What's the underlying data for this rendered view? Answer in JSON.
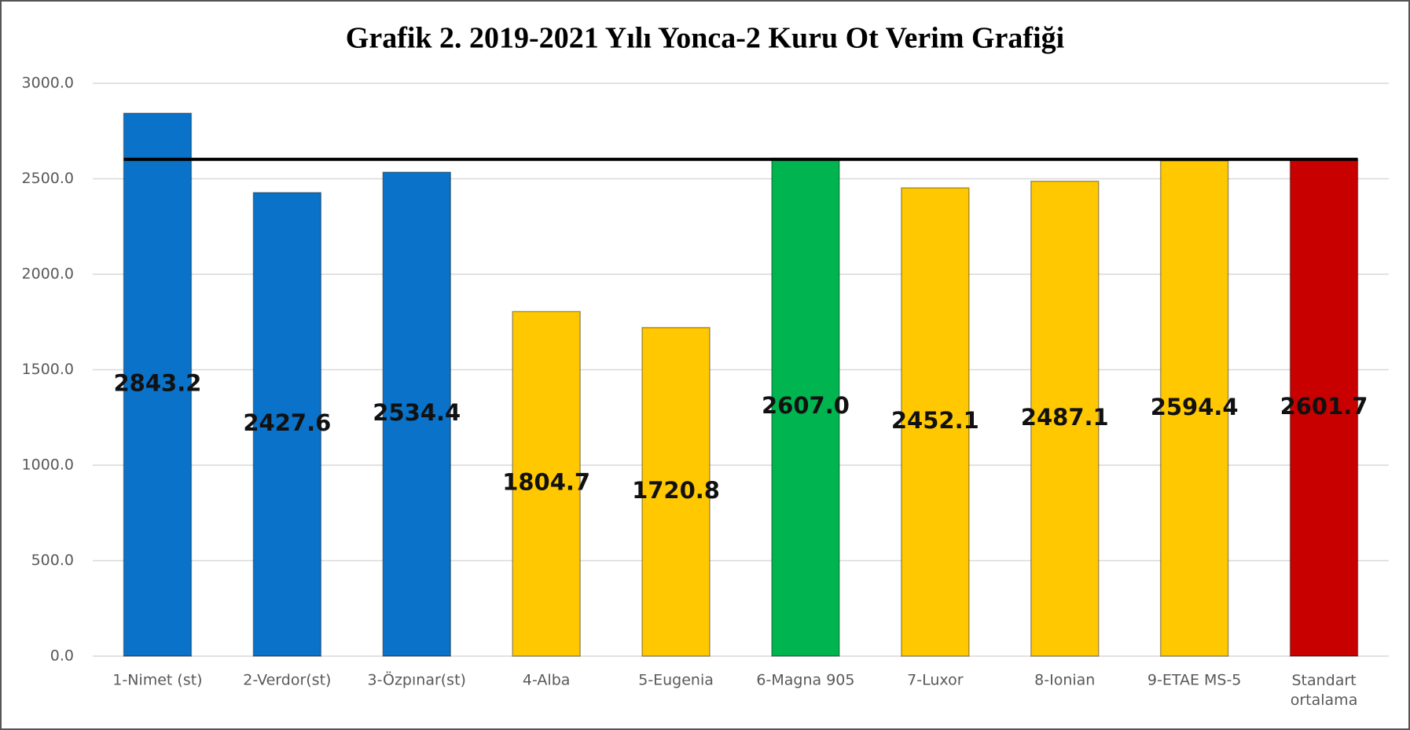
{
  "chart_data": {
    "type": "bar",
    "title": "Grafik 2. 2019-2021 Yılı Yonca-2 Kuru Ot Verim Grafiği",
    "categories": [
      "1-Nimet (st)",
      "2-Verdor(st)",
      "3-Özpınar(st)",
      "4-Alba",
      "5-Eugenia",
      "6-Magna 905",
      "7-Luxor",
      "8-Ionian",
      "9-ETAE MS-5",
      "Standart ortalama"
    ],
    "values": [
      2843.2,
      2427.6,
      2534.4,
      1804.7,
      1720.8,
      2607.0,
      2452.1,
      2487.1,
      2594.4,
      2601.7
    ],
    "value_labels": [
      "2843.2",
      "2427.6",
      "2534.4",
      "1804.7",
      "1720.8",
      "2607.0",
      "2452.1",
      "2487.1",
      "2594.4",
      "2601.7"
    ],
    "colors": [
      "#0a72c8",
      "#0a72c8",
      "#0a72c8",
      "#ffc800",
      "#ffc800",
      "#00b450",
      "#ffc800",
      "#ffc800",
      "#ffc800",
      "#c80000"
    ],
    "ylim": [
      0,
      3000
    ],
    "yticks": [
      {
        "value": 0,
        "label": "0.0"
      },
      {
        "value": 500,
        "label": "500.0"
      },
      {
        "value": 1000,
        "label": "1000.0"
      },
      {
        "value": 1500,
        "label": "1500.0"
      },
      {
        "value": 2000,
        "label": "2000.0"
      },
      {
        "value": 2500,
        "label": "2500.0"
      },
      {
        "value": 3000,
        "label": "3000.0"
      }
    ],
    "grid": true
  }
}
